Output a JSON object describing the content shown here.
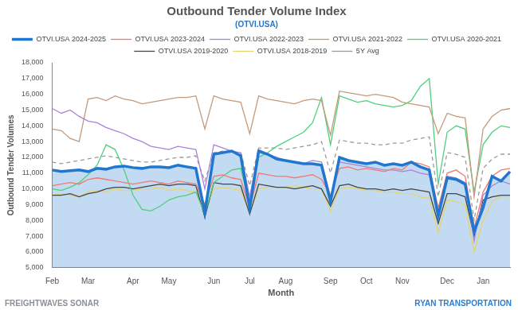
{
  "chart_data": {
    "type": "line",
    "title": "Outbound Tender Volume Index",
    "subtitle": "(OTVI.USA)",
    "x_label": "Month",
    "y_label": "Outbound Tender Volumes",
    "annotations": [
      "FREIGHTWAVES",
      "SONAR",
      "RYAN",
      "TRANSPORTATION"
    ],
    "legend": "top",
    "grid": false,
    "categories": [
      "Feb",
      null,
      null,
      null,
      "Mar",
      null,
      null,
      null,
      null,
      "Apr",
      null,
      null,
      null,
      "May",
      null,
      null,
      null,
      null,
      "Jun",
      null,
      null,
      null,
      "Jul",
      null,
      null,
      null,
      "Aug",
      null,
      null,
      null,
      null,
      "Sep",
      null,
      null,
      null,
      "Oct",
      null,
      null,
      null,
      "Nov",
      null,
      null,
      null,
      null,
      "Dec",
      null,
      null,
      null,
      "Jan",
      null,
      null,
      null
    ],
    "ylim": [
      5000,
      18000
    ],
    "yticks": [
      {
        "value": 5000,
        "label": "5,000"
      },
      {
        "value": 6000,
        "label": "6,000"
      },
      {
        "value": 7000,
        "label": "7,000"
      },
      {
        "value": 8000,
        "label": "8,000"
      },
      {
        "value": 9000,
        "label": "9,000"
      },
      {
        "value": 10000,
        "label": "10,000"
      },
      {
        "value": 11000,
        "label": "11,000"
      },
      {
        "value": 12000,
        "label": "12,000"
      },
      {
        "value": 13000,
        "label": "13,000"
      },
      {
        "value": 14000,
        "label": "14,000"
      },
      {
        "value": 15000,
        "label": "15,000"
      },
      {
        "value": 16000,
        "label": "16,000"
      },
      {
        "value": 17000,
        "label": "17,000"
      },
      {
        "value": 18000,
        "label": "18,000"
      }
    ],
    "series": [
      {
        "name": "OTVI.USA 2024-2025",
        "color": "#1f77d0",
        "type": "area",
        "line_style": "solid",
        "values": [
          11200,
          11100,
          11150,
          11200,
          11100,
          11300,
          11250,
          11400,
          11450,
          11350,
          11300,
          11400,
          11400,
          11350,
          11500,
          11400,
          11300,
          8500,
          12200,
          12300,
          12400,
          12100,
          8800,
          12400,
          12200,
          11900,
          11800,
          11700,
          11600,
          11600,
          11500,
          9200,
          12000,
          11800,
          11700,
          11600,
          11700,
          11500,
          11600,
          11500,
          11700,
          11400,
          11200,
          8300,
          10700,
          10600,
          10300,
          7300,
          8800,
          10800,
          10500,
          11100
        ]
      },
      {
        "name": "OTVI.USA 2023-2024",
        "color": "#f07a72",
        "type": "line",
        "line_style": "solid",
        "values": [
          10200,
          10300,
          10400,
          10300,
          10600,
          10700,
          10600,
          10500,
          10400,
          10300,
          10400,
          10500,
          10400,
          10300,
          10500,
          10400,
          10300,
          9000,
          10800,
          10900,
          10700,
          10600,
          8800,
          11000,
          10900,
          10800,
          10800,
          10700,
          10800,
          10900,
          10600,
          9600,
          11300,
          11400,
          11200,
          11300,
          11200,
          11100,
          11300,
          11200,
          11700,
          11600,
          11400,
          8800,
          11000,
          11200,
          10800,
          7500,
          9800,
          10800,
          11200,
          11300
        ]
      },
      {
        "name": "OTVI.USA 2022-2023",
        "color": "#a983d6",
        "type": "line",
        "line_style": "solid",
        "values": [
          15100,
          14800,
          15000,
          14600,
          14300,
          14200,
          13900,
          13700,
          13500,
          13200,
          13000,
          12700,
          12600,
          12500,
          12700,
          12600,
          12500,
          10000,
          12800,
          12600,
          12400,
          12300,
          9500,
          12500,
          12200,
          12000,
          11800,
          11700,
          11600,
          11800,
          11700,
          9500,
          11700,
          11600,
          11500,
          11400,
          11300,
          11200,
          11200,
          11100,
          11200,
          11000,
          10900,
          8500,
          10800,
          10700,
          10400,
          6700,
          9600,
          10200,
          10500,
          10300
        ]
      },
      {
        "name": "OTVI.USA 2021-2022",
        "color": "#c49a7a",
        "type": "line",
        "line_style": "solid",
        "values": [
          13800,
          13700,
          13200,
          13000,
          15700,
          15800,
          15600,
          15900,
          15700,
          15600,
          15400,
          15500,
          15600,
          15700,
          15800,
          15800,
          15900,
          13800,
          15900,
          15700,
          15600,
          15500,
          13500,
          15900,
          15700,
          15600,
          15500,
          15400,
          15600,
          15700,
          15600,
          13400,
          16200,
          16100,
          16000,
          15900,
          16000,
          15900,
          15800,
          15500,
          15400,
          15300,
          15200,
          13500,
          14800,
          14600,
          14500,
          9500,
          13800,
          14600,
          15000,
          15100
        ]
      },
      {
        "name": "OTVI.USA 2020-2021",
        "color": "#4fcf7c",
        "type": "line",
        "line_style": "solid",
        "values": [
          10000,
          9900,
          10100,
          10400,
          10900,
          11500,
          12800,
          12500,
          11200,
          9600,
          8700,
          8600,
          8900,
          9300,
          9500,
          9600,
          9800,
          8400,
          10400,
          10800,
          11200,
          11300,
          9000,
          12000,
          12300,
          12700,
          13000,
          13300,
          13600,
          14200,
          15800,
          12800,
          15900,
          15700,
          15500,
          15600,
          15400,
          15300,
          15200,
          15300,
          15600,
          16500,
          17000,
          10300,
          13600,
          14000,
          13800,
          9800,
          12800,
          13600,
          14000,
          13900
        ]
      },
      {
        "name": "OTVI.USA 2019-2020",
        "color": "#454545",
        "type": "line",
        "line_style": "solid",
        "values": [
          9600,
          9600,
          9700,
          9500,
          9700,
          9800,
          10000,
          10100,
          10100,
          10000,
          10100,
          10200,
          10300,
          10200,
          10300,
          10300,
          10200,
          8200,
          10400,
          10300,
          10300,
          10200,
          8400,
          10300,
          10200,
          10100,
          10100,
          10000,
          10100,
          10200,
          10000,
          8900,
          10200,
          10300,
          10100,
          10000,
          10000,
          9900,
          10000,
          9900,
          10000,
          9900,
          9800,
          7800,
          9700,
          9700,
          9500,
          7000,
          9300,
          9500,
          9600,
          9600
        ]
      },
      {
        "name": "OTVI.USA 2018-2019",
        "color": "#e6d46c",
        "type": "line",
        "line_style": "solid",
        "values": [
          9600,
          9700,
          9600,
          9500,
          9800,
          9900,
          9800,
          10000,
          9900,
          9900,
          10000,
          10000,
          10100,
          9900,
          10000,
          9900,
          9800,
          8700,
          10000,
          10100,
          10000,
          9900,
          8500,
          10000,
          10100,
          10100,
          10100,
          10200,
          10100,
          10000,
          10000,
          8600,
          10000,
          10100,
          10000,
          9900,
          9900,
          9800,
          9800,
          9700,
          9700,
          9500,
          9400,
          7200,
          9300,
          9200,
          9000,
          6000,
          8000,
          9200,
          9500,
          9500
        ]
      },
      {
        "name": "5Y Avg",
        "color": "#9a9a9a",
        "type": "line",
        "line_style": "dashed",
        "values": [
          11700,
          11600,
          11700,
          11800,
          11900,
          12000,
          12100,
          12000,
          11900,
          11800,
          11700,
          11700,
          11800,
          11900,
          12000,
          12000,
          12100,
          10500,
          12300,
          12400,
          12300,
          12300,
          10200,
          12600,
          12600,
          12600,
          12500,
          12600,
          12700,
          12800,
          13000,
          11000,
          13100,
          13000,
          12900,
          12900,
          12800,
          12800,
          12900,
          12900,
          13100,
          13200,
          13300,
          9500,
          12300,
          12200,
          12000,
          8000,
          11300,
          11900,
          12200,
          12200
        ]
      }
    ]
  }
}
